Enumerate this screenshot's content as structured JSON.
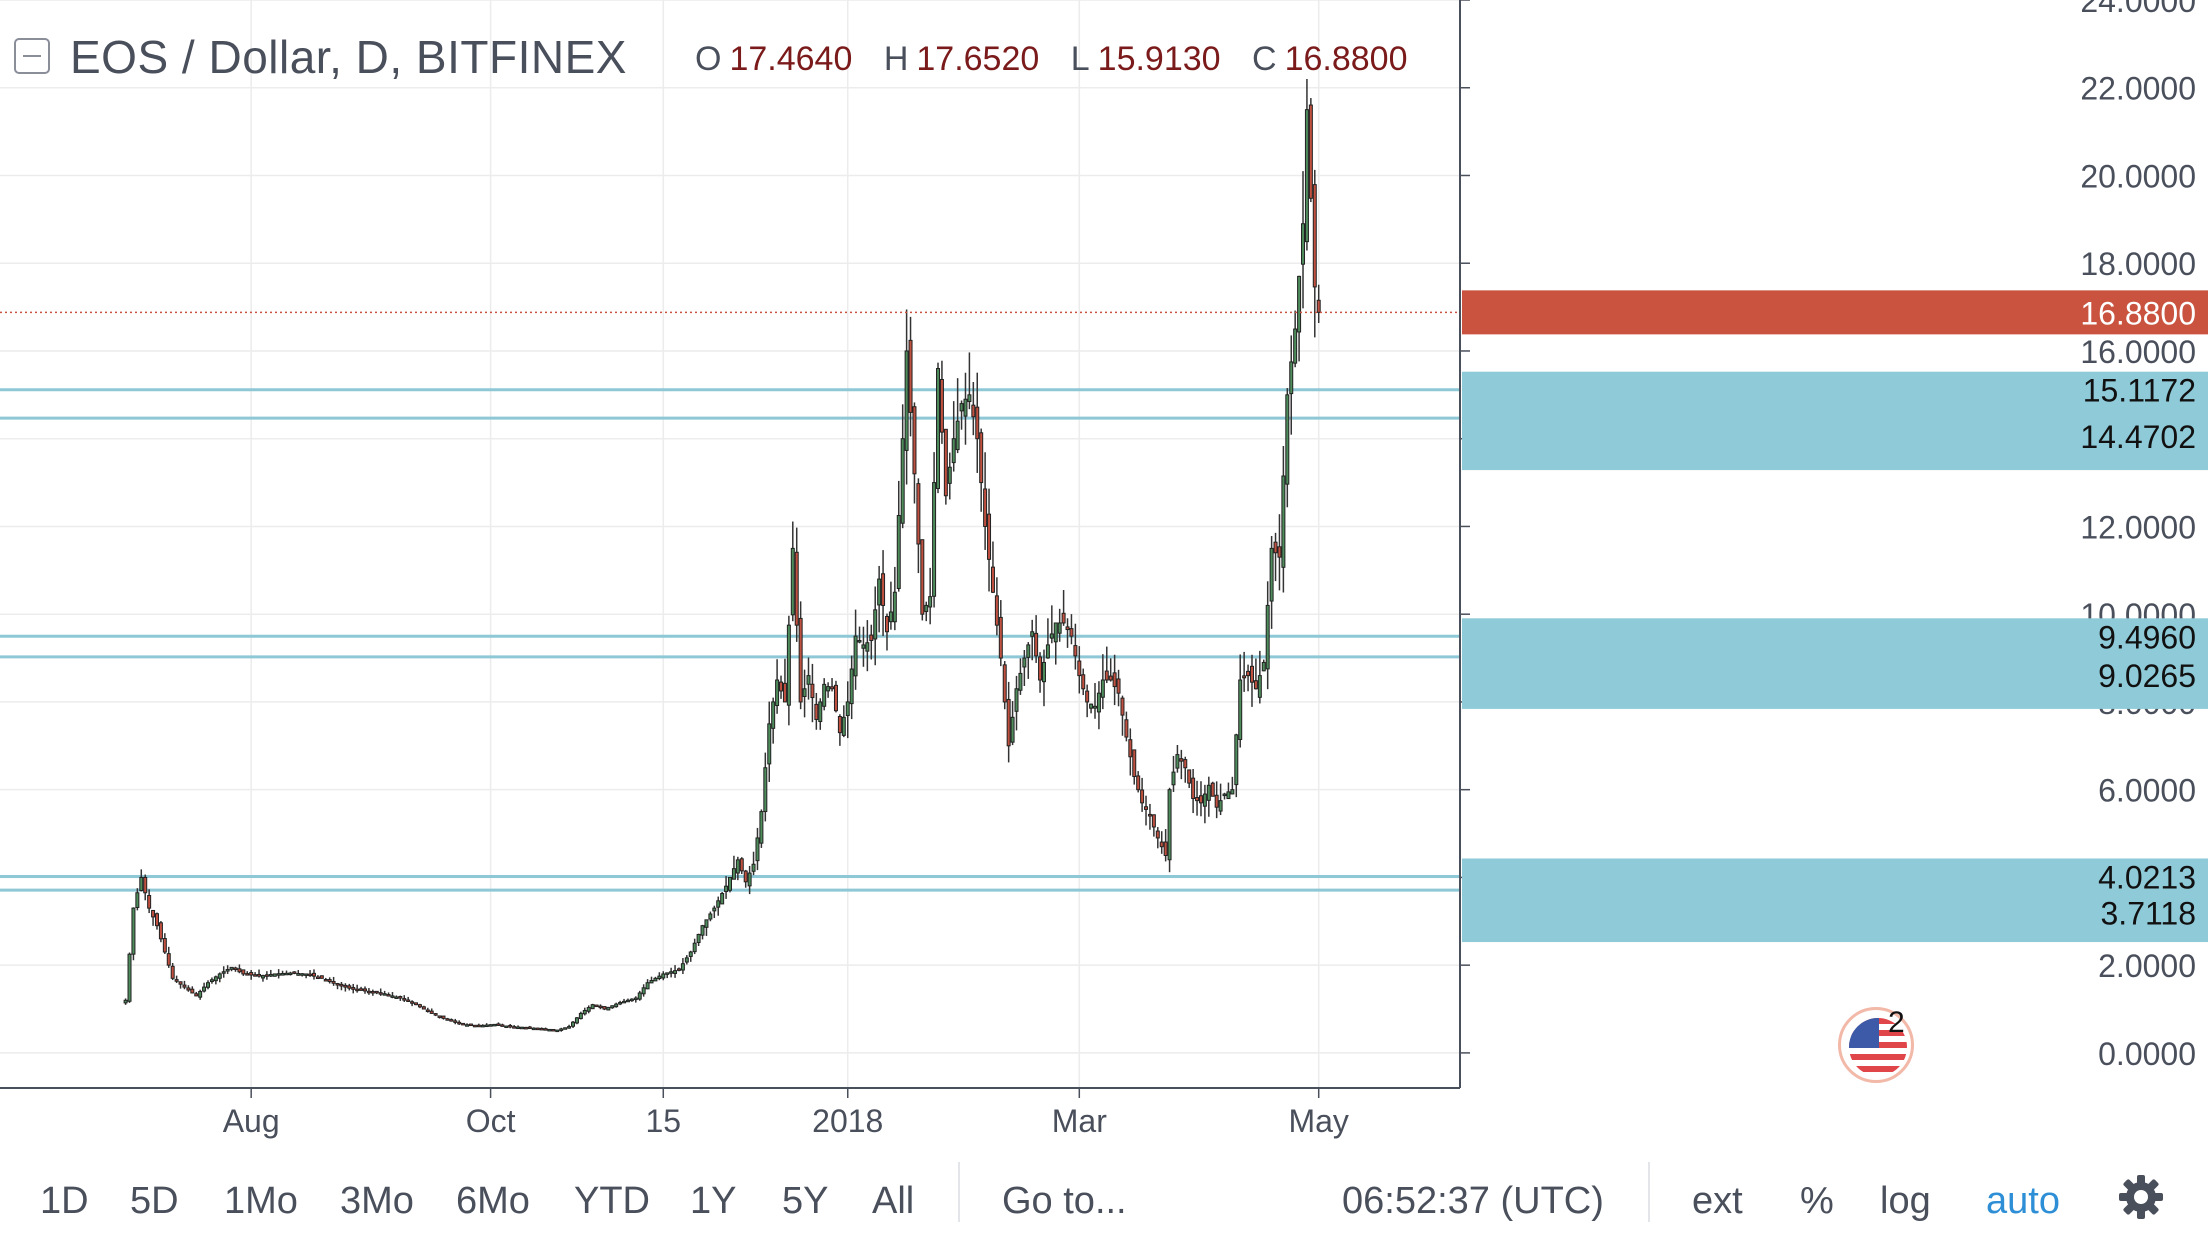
{
  "header": {
    "title": "EOS / Dollar, D, BITFINEX",
    "ohlc": [
      {
        "key": "O",
        "value": "17.4640"
      },
      {
        "key": "H",
        "value": "17.6520"
      },
      {
        "key": "L",
        "value": "15.9130"
      },
      {
        "key": "C",
        "value": "16.8800"
      }
    ]
  },
  "toolbar": {
    "ranges": [
      "1D",
      "5D",
      "1Mo",
      "3Mo",
      "6Mo",
      "YTD",
      "1Y",
      "5Y",
      "All"
    ],
    "goto": "Go to...",
    "clock": "06:52:37 (UTC)",
    "ext": "ext",
    "percent": "%",
    "log": "log",
    "auto": "auto"
  },
  "events": {
    "count": "2"
  },
  "colors": {
    "up": "#4e8c5c",
    "down": "#c0503f",
    "level_line": "#8ec8d6",
    "level_label_bg": "#8ecad8",
    "last_price_bg": "#c9533f",
    "grid": "#ececec"
  },
  "chart_data": {
    "type": "candlestick",
    "symbol": "EOS / Dollar",
    "interval": "D",
    "exchange": "BITFINEX",
    "y_ticks": [
      "0.0000",
      "2.0000",
      "4.0000",
      "6.0000",
      "8.0000",
      "10.0000",
      "12.0000",
      "14.0000",
      "16.0000",
      "18.0000",
      "20.0000",
      "22.0000",
      "24.0000"
    ],
    "ylim": [
      -0.8,
      24.0
    ],
    "x_ticks": [
      {
        "label": "Aug",
        "day": 32
      },
      {
        "label": "Oct",
        "day": 93
      },
      {
        "label": "15",
        "day": 137
      },
      {
        "label": "2018",
        "day": 184
      },
      {
        "label": "Mar",
        "day": 243
      },
      {
        "label": "May",
        "day": 304
      }
    ],
    "xlim": [
      -32,
      340
    ],
    "last_price": {
      "value": 16.88,
      "label": "16.8800"
    },
    "horizontal_levels": [
      {
        "value": 15.1172,
        "label": "15.1172"
      },
      {
        "value": 14.4702,
        "label": "14.4702"
      },
      {
        "value": 9.496,
        "label": "9.4960"
      },
      {
        "value": 9.0265,
        "label": "9.0265"
      },
      {
        "value": 4.0213,
        "label": "4.0213"
      },
      {
        "value": 3.7118,
        "label": "3.7118"
      }
    ],
    "price_path_close": [
      [
        0,
        1.2
      ],
      [
        2,
        3.3
      ],
      [
        4,
        4.0
      ],
      [
        6,
        3.3
      ],
      [
        8,
        2.9
      ],
      [
        10,
        2.3
      ],
      [
        12,
        1.7
      ],
      [
        15,
        1.5
      ],
      [
        18,
        1.3
      ],
      [
        21,
        1.6
      ],
      [
        24,
        1.8
      ],
      [
        27,
        1.95
      ],
      [
        30,
        1.8
      ],
      [
        34,
        1.75
      ],
      [
        38,
        1.8
      ],
      [
        42,
        1.82
      ],
      [
        46,
        1.8
      ],
      [
        50,
        1.7
      ],
      [
        54,
        1.55
      ],
      [
        58,
        1.45
      ],
      [
        62,
        1.4
      ],
      [
        66,
        1.35
      ],
      [
        70,
        1.25
      ],
      [
        74,
        1.1
      ],
      [
        78,
        0.9
      ],
      [
        82,
        0.75
      ],
      [
        86,
        0.65
      ],
      [
        90,
        0.62
      ],
      [
        94,
        0.65
      ],
      [
        98,
        0.6
      ],
      [
        102,
        0.58
      ],
      [
        106,
        0.55
      ],
      [
        110,
        0.52
      ],
      [
        113,
        0.6
      ],
      [
        116,
        0.9
      ],
      [
        119,
        1.1
      ],
      [
        122,
        1.0
      ],
      [
        126,
        1.15
      ],
      [
        130,
        1.25
      ],
      [
        133,
        1.6
      ],
      [
        137,
        1.8
      ],
      [
        141,
        1.9
      ],
      [
        144,
        2.3
      ],
      [
        147,
        2.9
      ],
      [
        150,
        3.3
      ],
      [
        153,
        3.8
      ],
      [
        156,
        4.4
      ],
      [
        158,
        3.9
      ],
      [
        160,
        4.3
      ],
      [
        162,
        5.5
      ],
      [
        164,
        7.5
      ],
      [
        166,
        8.5
      ],
      [
        168,
        8.0
      ],
      [
        170,
        11.5
      ],
      [
        172,
        8.0
      ],
      [
        174,
        8.6
      ],
      [
        176,
        7.6
      ],
      [
        178,
        8.4
      ],
      [
        180,
        8.3
      ],
      [
        182,
        7.3
      ],
      [
        184,
        8.0
      ],
      [
        186,
        9.5
      ],
      [
        188,
        9.3
      ],
      [
        190,
        9.4
      ],
      [
        192,
        10.8
      ],
      [
        194,
        9.6
      ],
      [
        196,
        10.5
      ],
      [
        198,
        14.0
      ],
      [
        199,
        16.0
      ],
      [
        201,
        13.2
      ],
      [
        203,
        10.0
      ],
      [
        205,
        10.4
      ],
      [
        207,
        15.6
      ],
      [
        209,
        12.7
      ],
      [
        211,
        14.0
      ],
      [
        213,
        14.8
      ],
      [
        215,
        15.0
      ],
      [
        217,
        14.0
      ],
      [
        219,
        12.0
      ],
      [
        221,
        10.5
      ],
      [
        223,
        9.0
      ],
      [
        225,
        7.0
      ],
      [
        227,
        8.3
      ],
      [
        229,
        9.0
      ],
      [
        231,
        9.6
      ],
      [
        233,
        8.5
      ],
      [
        235,
        9.3
      ],
      [
        237,
        9.8
      ],
      [
        239,
        9.8
      ],
      [
        241,
        9.5
      ],
      [
        243,
        8.6
      ],
      [
        245,
        8.0
      ],
      [
        247,
        7.9
      ],
      [
        249,
        8.5
      ],
      [
        251,
        8.5
      ],
      [
        253,
        8.2
      ],
      [
        255,
        7.2
      ],
      [
        257,
        6.3
      ],
      [
        259,
        5.7
      ],
      [
        261,
        5.4
      ],
      [
        263,
        4.9
      ],
      [
        265,
        4.5
      ],
      [
        266,
        6.0
      ],
      [
        268,
        6.8
      ],
      [
        270,
        6.5
      ],
      [
        272,
        5.8
      ],
      [
        274,
        5.7
      ],
      [
        276,
        6.1
      ],
      [
        278,
        5.6
      ],
      [
        280,
        5.9
      ],
      [
        282,
        6.0
      ],
      [
        284,
        8.5
      ],
      [
        286,
        8.6
      ],
      [
        288,
        8.3
      ],
      [
        290,
        8.9
      ],
      [
        292,
        11.5
      ],
      [
        294,
        11.3
      ],
      [
        296,
        15.0
      ],
      [
        298,
        16.5
      ],
      [
        300,
        18.9
      ],
      [
        301,
        21.5
      ],
      [
        303,
        17.46
      ],
      [
        304,
        16.88
      ]
    ]
  }
}
